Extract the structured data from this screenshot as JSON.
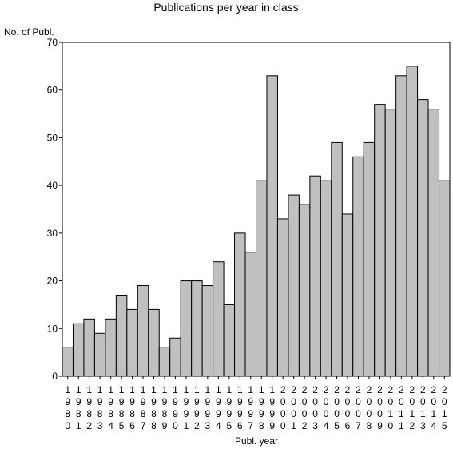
{
  "chart_data": {
    "type": "bar",
    "title": "Publications per year in class",
    "ylabel": "No. of Publ.",
    "xlabel": "Publ. year",
    "ylim": [
      0,
      70
    ],
    "yticks": [
      0,
      10,
      20,
      30,
      40,
      50,
      60,
      70
    ],
    "categories": [
      "1980",
      "1981",
      "1982",
      "1983",
      "1984",
      "1985",
      "1986",
      "1987",
      "1988",
      "1989",
      "1990",
      "1991",
      "1992",
      "1993",
      "1994",
      "1995",
      "1996",
      "1997",
      "1998",
      "1999",
      "2000",
      "2001",
      "2002",
      "2003",
      "2004",
      "2005",
      "2006",
      "2007",
      "2008",
      "2009",
      "2010",
      "2011",
      "2012",
      "2013",
      "2014",
      "2015"
    ],
    "values": [
      6,
      11,
      12,
      9,
      12,
      17,
      14,
      19,
      14,
      6,
      8,
      20,
      20,
      19,
      24,
      15,
      30,
      26,
      41,
      63,
      33,
      38,
      36,
      42,
      41,
      49,
      34,
      46,
      49,
      57,
      56,
      63,
      65,
      58,
      56,
      41
    ],
    "bar_color": "#c0c0c0",
    "grid": false
  }
}
